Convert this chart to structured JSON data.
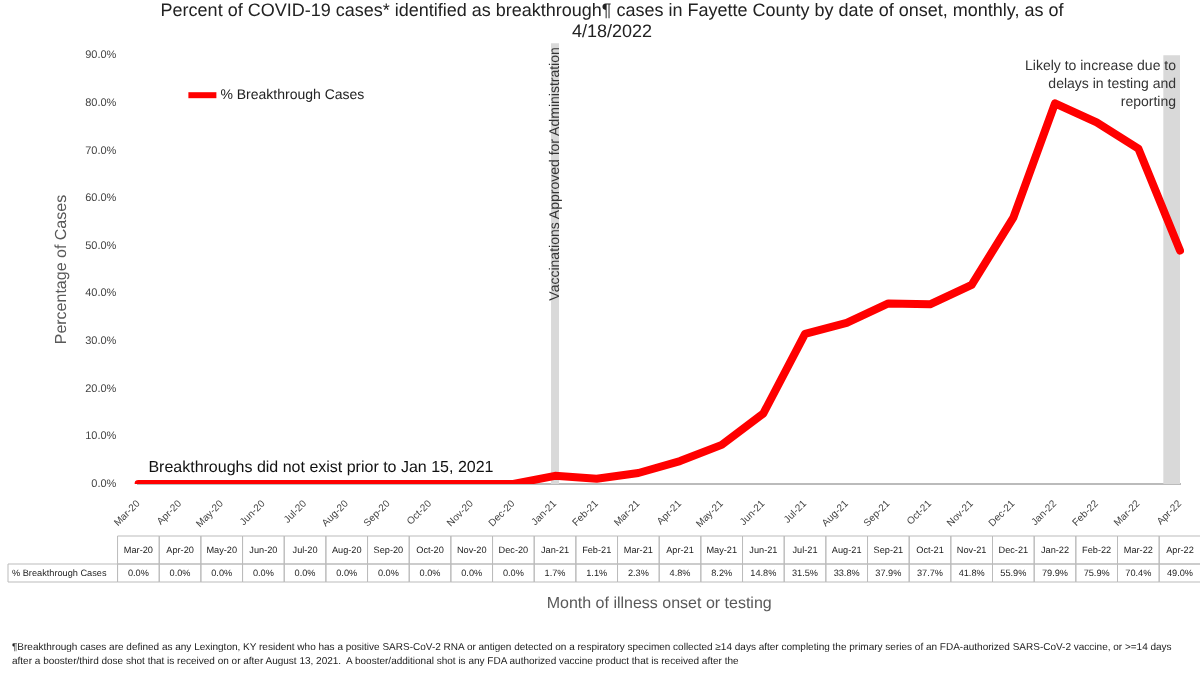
{
  "chart_data": {
    "type": "line",
    "title": "Percent of COVID-19 cases* identified as breakthrough¶ cases in Fayette County by date of onset, monthly, as of 4/18/2022",
    "xlabel": "Month of illness onset or testing",
    "ylabel": "Percentage of Cases",
    "categories": [
      "Mar-20",
      "Apr-20",
      "May-20",
      "Jun-20",
      "Jul-20",
      "Aug-20",
      "Sep-20",
      "Oct-20",
      "Nov-20",
      "Dec-20",
      "Jan-21",
      "Feb-21",
      "Mar-21",
      "Apr-21",
      "May-21",
      "Jun-21",
      "Jul-21",
      "Aug-21",
      "Sep-21",
      "Oct-21",
      "Nov-21",
      "Dec-21",
      "Jan-22",
      "Feb-22",
      "Mar-22",
      "Apr-22"
    ],
    "series": [
      {
        "name": "% Breakthrough Cases",
        "color": "#ff0000",
        "values": [
          0.0,
          0.0,
          0.0,
          0.0,
          0.0,
          0.0,
          0.0,
          0.0,
          0.0,
          0.0,
          1.7,
          1.1,
          2.3,
          4.8,
          8.2,
          14.8,
          31.5,
          33.8,
          37.9,
          37.7,
          41.8,
          55.9,
          79.9,
          75.9,
          70.4,
          49.0
        ],
        "value_labels": [
          "0.0%",
          "0.0%",
          "0.0%",
          "0.0%",
          "0.0%",
          "0.0%",
          "0.0%",
          "0.0%",
          "0.0%",
          "0.0%",
          "1.7%",
          "1.1%",
          "2.3%",
          "4.8%",
          "8.2%",
          "14.8%",
          "31.5%",
          "33.8%",
          "37.9%",
          "37.7%",
          "41.8%",
          "55.9%",
          "79.9%",
          "75.9%",
          "70.4%",
          "49.0%"
        ]
      }
    ],
    "ylim": [
      0,
      90
    ],
    "yticks": [
      {
        "value": 0,
        "label": "0.0%"
      },
      {
        "value": 10,
        "label": "10.0%"
      },
      {
        "value": 20,
        "label": "20.0%"
      },
      {
        "value": 30,
        "label": "30.0%"
      },
      {
        "value": 40,
        "label": "40.0%"
      },
      {
        "value": 50,
        "label": "50.0%"
      },
      {
        "value": 60,
        "label": "60.0%"
      },
      {
        "value": 70,
        "label": "70.0%"
      },
      {
        "value": 80,
        "label": "80.0%"
      },
      {
        "value": 90,
        "label": "90.0%"
      }
    ],
    "ref_lines": [
      {
        "axis": "x",
        "value": "Jan-21",
        "label": "Vaccinations Approved for Administration",
        "color": "#d9d9d9"
      }
    ],
    "bands": [
      {
        "axis": "x",
        "from": "Mar-22",
        "to": "Apr-22",
        "label": "Likely to increase due to delays in testing and reporting",
        "color": "#d9d9d9"
      }
    ],
    "annotations": [
      "Breakthroughs did not exist prior to Jan 15, 2021",
      "¶Breakthrough cases are defined as any Lexington, KY resident who has a positive SARS-CoV-2 RNA or antigen detected on a respiratory specimen collected ≥14 days after completing the primary series of an FDA-authorized SARS-CoV-2 vaccine, or >=14 days after a booster/third dose shot that is received on or after August 13, 2021.  A booster/additional shot is any FDA authorized vaccine product that is received after the"
    ],
    "legend": "top left",
    "marker": "none",
    "line_style": "solid"
  }
}
